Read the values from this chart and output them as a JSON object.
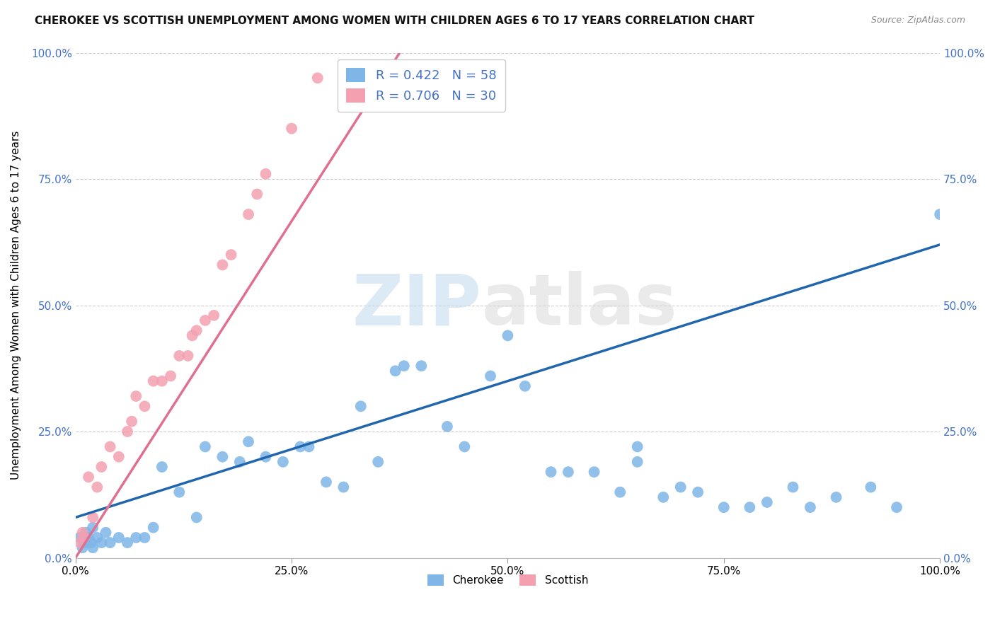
{
  "title": "CHEROKEE VS SCOTTISH UNEMPLOYMENT AMONG WOMEN WITH CHILDREN AGES 6 TO 17 YEARS CORRELATION CHART",
  "source": "Source: ZipAtlas.com",
  "ylabel": "Unemployment Among Women with Children Ages 6 to 17 years",
  "xlim": [
    0,
    1.0
  ],
  "ylim": [
    0,
    1.0
  ],
  "xticks": [
    0.0,
    0.25,
    0.5,
    0.75,
    1.0
  ],
  "xticklabels": [
    "0.0%",
    "25.0%",
    "50.0%",
    "75.0%",
    "100.0%"
  ],
  "yticks": [
    0.0,
    0.25,
    0.5,
    0.75,
    1.0
  ],
  "yticklabels": [
    "0.0%",
    "25.0%",
    "50.0%",
    "75.0%",
    "100.0%"
  ],
  "cherokee_R": 0.422,
  "cherokee_N": 58,
  "scottish_R": 0.706,
  "scottish_N": 30,
  "cherokee_color": "#7EB6E8",
  "scottish_color": "#F4A0B0",
  "cherokee_line_color": "#2166AC",
  "scottish_line_color": "#E07090",
  "axis_tick_color": "#4472C4",
  "legend_text_color": "#4472C4",
  "cherokee_x": [
    0.005,
    0.008,
    0.01,
    0.012,
    0.015,
    0.018,
    0.02,
    0.02,
    0.025,
    0.03,
    0.035,
    0.04,
    0.05,
    0.06,
    0.07,
    0.08,
    0.09,
    0.1,
    0.12,
    0.14,
    0.15,
    0.17,
    0.19,
    0.2,
    0.22,
    0.24,
    0.26,
    0.27,
    0.29,
    0.31,
    0.33,
    0.35,
    0.37,
    0.38,
    0.4,
    0.43,
    0.45,
    0.48,
    0.5,
    0.52,
    0.55,
    0.57,
    0.6,
    0.63,
    0.65,
    0.65,
    0.68,
    0.7,
    0.72,
    0.75,
    0.78,
    0.8,
    0.83,
    0.85,
    0.88,
    0.92,
    0.95,
    1.0
  ],
  "cherokee_y": [
    0.04,
    0.02,
    0.03,
    0.05,
    0.04,
    0.03,
    0.06,
    0.02,
    0.04,
    0.03,
    0.05,
    0.03,
    0.04,
    0.03,
    0.04,
    0.04,
    0.06,
    0.18,
    0.13,
    0.08,
    0.22,
    0.2,
    0.19,
    0.23,
    0.2,
    0.19,
    0.22,
    0.22,
    0.15,
    0.14,
    0.3,
    0.19,
    0.37,
    0.38,
    0.38,
    0.26,
    0.22,
    0.36,
    0.44,
    0.34,
    0.17,
    0.17,
    0.17,
    0.13,
    0.19,
    0.22,
    0.12,
    0.14,
    0.13,
    0.1,
    0.1,
    0.11,
    0.14,
    0.1,
    0.12,
    0.14,
    0.1,
    0.68
  ],
  "scottish_x": [
    0.005,
    0.008,
    0.01,
    0.015,
    0.02,
    0.025,
    0.03,
    0.04,
    0.05,
    0.06,
    0.065,
    0.07,
    0.08,
    0.09,
    0.1,
    0.11,
    0.12,
    0.13,
    0.135,
    0.14,
    0.15,
    0.16,
    0.17,
    0.18,
    0.2,
    0.21,
    0.22,
    0.25,
    0.28,
    0.33
  ],
  "scottish_y": [
    0.03,
    0.05,
    0.04,
    0.16,
    0.08,
    0.14,
    0.18,
    0.22,
    0.2,
    0.25,
    0.27,
    0.32,
    0.3,
    0.35,
    0.35,
    0.36,
    0.4,
    0.4,
    0.44,
    0.45,
    0.47,
    0.48,
    0.58,
    0.6,
    0.68,
    0.72,
    0.76,
    0.85,
    0.95,
    0.97
  ],
  "cherokee_trend_x": [
    0.0,
    1.0
  ],
  "cherokee_trend_y": [
    0.08,
    0.62
  ],
  "scottish_trend_x": [
    0.0,
    0.375
  ],
  "scottish_trend_y": [
    0.0,
    1.0
  ],
  "background_color": "#FFFFFF",
  "grid_color": "#CCCCCC"
}
